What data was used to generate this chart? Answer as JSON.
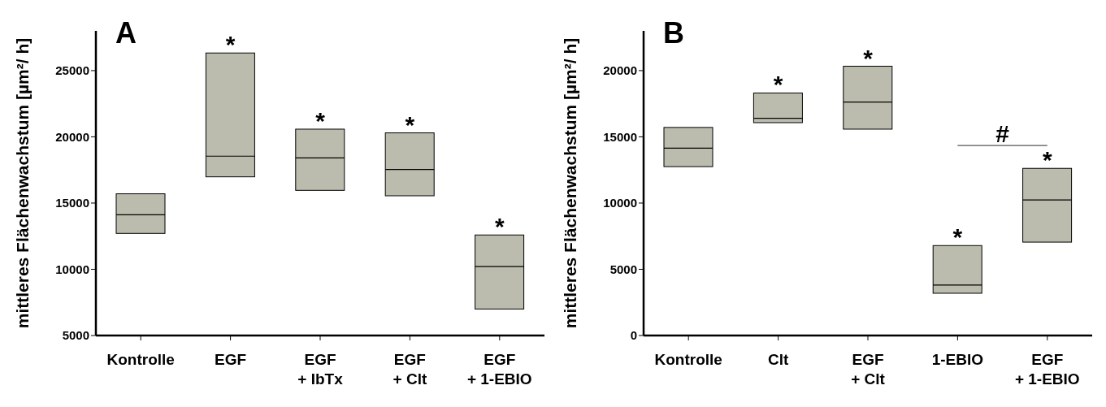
{
  "chart_data": [
    {
      "type": "box",
      "title": "A",
      "ylabel": "mittleres Flächenwachstum [µm²/ h]",
      "categories": [
        "Kontrolle",
        "EGF",
        "EGF\n+ IbTx",
        "EGF\n+ Clt",
        "EGF\n+ 1-EBIO"
      ],
      "color": "#bcbcae",
      "boxes": [
        {
          "low": 12710,
          "q1": 12710,
          "median": 14120,
          "q3": 15700,
          "high": 15700
        },
        {
          "low": 16980,
          "q1": 16980,
          "median": 18540,
          "q3": 26330,
          "high": 26330
        },
        {
          "low": 15960,
          "q1": 15960,
          "median": 18410,
          "q3": 20580,
          "high": 20580
        },
        {
          "low": 15550,
          "q1": 15550,
          "median": 17540,
          "q3": 20300,
          "high": 20300
        },
        {
          "low": 7000,
          "q1": 7000,
          "median": 10210,
          "q3": 12590,
          "high": 12590
        }
      ],
      "ylim": [
        5000,
        28000
      ],
      "yticks": [
        5000,
        10000,
        15000,
        20000,
        25000
      ],
      "annotations": [
        {
          "text": "*",
          "x": "EGF",
          "y": 26330
        },
        {
          "text": "*",
          "x": "EGF\n+ IbTx",
          "y": 20580
        },
        {
          "text": "*",
          "x": "EGF\n+ Clt",
          "y": 20300
        },
        {
          "text": "*",
          "x": "EGF\n+ 1-EBIO",
          "y": 12590
        }
      ]
    },
    {
      "type": "box",
      "title": "B",
      "ylabel": "mittleres Flächenwachstum [µm²/ h]",
      "categories": [
        "Kontrolle",
        "Clt",
        "EGF\n+ Clt",
        "1-EBIO",
        "EGF\n+ 1-EBIO"
      ],
      "color": "#bcbcae",
      "boxes": [
        {
          "low": 12750,
          "q1": 12750,
          "median": 14150,
          "q3": 15710,
          "high": 15710
        },
        {
          "low": 16070,
          "q1": 16070,
          "median": 16400,
          "q3": 18310,
          "high": 18310
        },
        {
          "low": 15580,
          "q1": 15580,
          "median": 17620,
          "q3": 20330,
          "high": 20330
        },
        {
          "low": 3190,
          "q1": 3190,
          "median": 3810,
          "q3": 6790,
          "high": 6790
        },
        {
          "low": 7050,
          "q1": 7050,
          "median": 10240,
          "q3": 12620,
          "high": 12620
        }
      ],
      "ylim": [
        0,
        23000
      ],
      "yticks": [
        0,
        5000,
        10000,
        15000,
        20000
      ],
      "annotations": [
        {
          "text": "*",
          "x": "Clt",
          "y": 18310
        },
        {
          "text": "*",
          "x": "EGF\n+ Clt",
          "y": 20330
        },
        {
          "text": "*",
          "x": "1-EBIO",
          "y": 6790
        },
        {
          "text": "*",
          "x": "EGF\n+ 1-EBIO",
          "y": 12620
        },
        "#"
      ]
    }
  ]
}
